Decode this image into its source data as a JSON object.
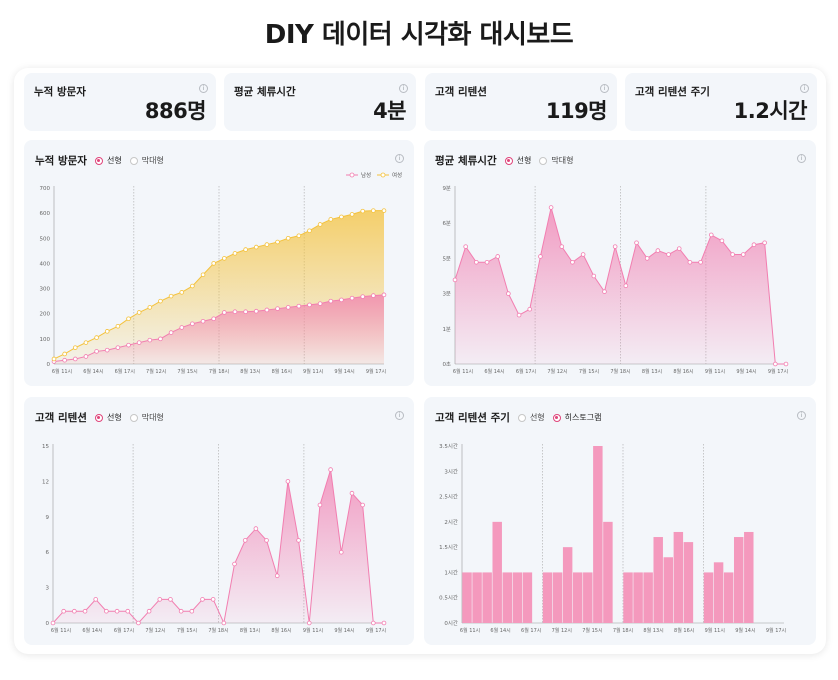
{
  "title": "DIY 데이터 시각화 대시보드",
  "stats": [
    {
      "label": "누적 방문자",
      "value": "886명"
    },
    {
      "label": "평균 체류시간",
      "value": "4분"
    },
    {
      "label": "고객 리텐션",
      "value": "119명"
    },
    {
      "label": "고객 리텐션 주기",
      "value": "1.2시간"
    }
  ],
  "info_glyph": "i",
  "colors": {
    "pink": "#f27eb0",
    "pink_bar": "#f499bd",
    "yellow": "#f4c23c",
    "yellow_fill": "#f6cb5a",
    "accent": "#e0457b"
  },
  "panels": {
    "visitors": {
      "title": "누적 방문자",
      "options": [
        "선형",
        "막대형"
      ],
      "selected": 0
    },
    "dwell": {
      "title": "평균 체류시간",
      "options": [
        "선형",
        "막대형"
      ],
      "selected": 0
    },
    "retention": {
      "title": "고객 리텐션",
      "options": [
        "선형",
        "막대형"
      ],
      "selected": 0
    },
    "cycle": {
      "title": "고객 리텐션 주기",
      "options": [
        "선형",
        "히스토그램"
      ],
      "selected": 1
    }
  },
  "chart_data": [
    {
      "id": "visitors",
      "type": "area",
      "title": "누적 방문자",
      "legend": "top-right",
      "ylim": [
        0,
        700
      ],
      "yticks": [
        "0",
        "100",
        "200",
        "300",
        "400",
        "500",
        "600",
        "700"
      ],
      "xlabels": [
        "6월 11시",
        "6월 14시",
        "6월 17시",
        "7월 12시",
        "7월 15시",
        "7월 18시",
        "8월 13시",
        "8월 16시",
        "9월 11시",
        "9월 14시",
        "9월 17시"
      ],
      "x_count": 32,
      "vlines": [
        7,
        15,
        23
      ],
      "series": [
        {
          "name": "남성",
          "color": "#f27eb0",
          "values": [
            10,
            15,
            20,
            30,
            50,
            55,
            65,
            75,
            85,
            95,
            100,
            125,
            145,
            160,
            170,
            180,
            205,
            208,
            208,
            210,
            215,
            220,
            225,
            230,
            235,
            240,
            250,
            255,
            262,
            268,
            272,
            275
          ]
        },
        {
          "name": "여성",
          "color": "#f4c23c",
          "values": [
            20,
            40,
            65,
            85,
            105,
            130,
            150,
            180,
            205,
            225,
            250,
            270,
            285,
            310,
            355,
            400,
            420,
            440,
            455,
            465,
            475,
            485,
            500,
            510,
            530,
            555,
            575,
            585,
            595,
            608,
            610,
            610
          ]
        }
      ]
    },
    {
      "id": "dwell",
      "type": "area",
      "title": "평균 체류시간",
      "ylim": [
        0,
        9
      ],
      "yticks": [
        "0초",
        "1분",
        "3분",
        "5분",
        "6분",
        "9분"
      ],
      "xlabels": [
        "6월 11시",
        "6월 14시",
        "6월 17시",
        "7월 12시",
        "7월 15시",
        "7월 18시",
        "8월 13시",
        "8월 16시",
        "9월 11시",
        "9월 14시",
        "9월 17시"
      ],
      "x_count": 32,
      "vlines": [
        7,
        15,
        23
      ],
      "series": [
        {
          "name": "",
          "color": "#f27eb0",
          "values": [
            4.3,
            6.0,
            5.2,
            5.2,
            5.5,
            3.6,
            2.5,
            2.8,
            5.5,
            8.0,
            6.0,
            5.2,
            5.6,
            4.5,
            3.7,
            6.0,
            4.0,
            6.2,
            5.4,
            5.8,
            5.6,
            5.9,
            5.2,
            5.2,
            6.6,
            6.3,
            5.6,
            5.6,
            6.1,
            6.2,
            0.0,
            0.0
          ]
        }
      ]
    },
    {
      "id": "retention",
      "type": "area",
      "title": "고객 리텐션",
      "ylim": [
        0,
        15
      ],
      "yticks": [
        "0",
        "3",
        "6",
        "9",
        "12",
        "15"
      ],
      "xlabels": [
        "6월 11시",
        "6월 14시",
        "6월 17시",
        "7월 12시",
        "7월 15시",
        "7월 18시",
        "8월 13시",
        "8월 16시",
        "9월 11시",
        "9월 14시",
        "9월 17시"
      ],
      "x_count": 32,
      "vlines": [
        7,
        15,
        23
      ],
      "series": [
        {
          "name": "",
          "color": "#f27eb0",
          "values": [
            0,
            1,
            1,
            1,
            2,
            1,
            1,
            1,
            0,
            1,
            2,
            2,
            1,
            1,
            2,
            2,
            0,
            5,
            7,
            8,
            7,
            4,
            12,
            7,
            0,
            10,
            13,
            6,
            11,
            10,
            0,
            0
          ]
        }
      ]
    },
    {
      "id": "cycle",
      "type": "bar",
      "title": "고객 리텐션 주기",
      "ylim": [
        0,
        3.5
      ],
      "yticks": [
        "0시간",
        "0.5시간",
        "1시간",
        "1.5시간",
        "2시간",
        "2.5시간",
        "3시간",
        "3.5시간"
      ],
      "xlabels": [
        "6월 11시",
        "6월 14시",
        "6월 17시",
        "7월 12시",
        "7월 15시",
        "7월 18시",
        "8월 13시",
        "8월 16시",
        "9월 11시",
        "9월 14시",
        "9월 17시"
      ],
      "x_count": 32,
      "vlines": [
        7,
        15,
        23
      ],
      "series": [
        {
          "name": "",
          "color": "#f499bd",
          "values": [
            1.0,
            1.0,
            1.0,
            2.0,
            1.0,
            1.0,
            1.0,
            0,
            1.0,
            1.0,
            1.5,
            1.0,
            1.0,
            3.5,
            2.0,
            0,
            1.0,
            1.0,
            1.0,
            1.7,
            1.3,
            1.8,
            1.6,
            0,
            1.0,
            1.2,
            1.0,
            1.7,
            1.8,
            0,
            0,
            0
          ]
        }
      ]
    }
  ]
}
